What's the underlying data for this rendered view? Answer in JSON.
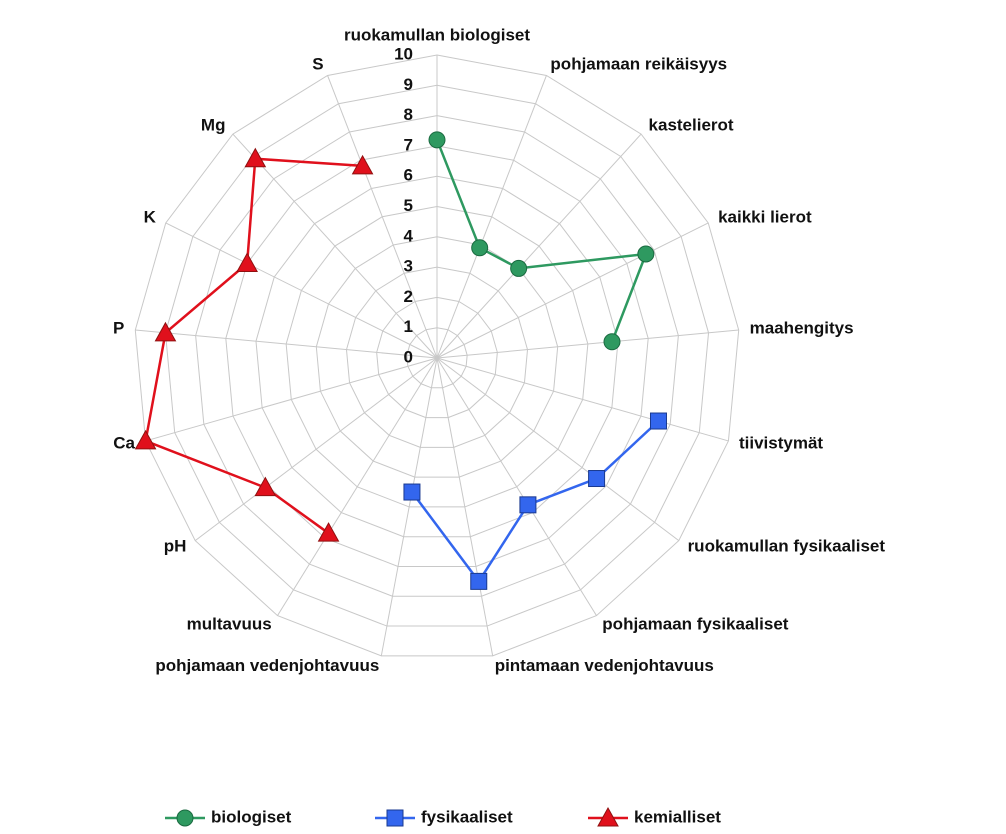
{
  "chart_data": {
    "type": "radar",
    "categories": [
      "ruokamullan biologiset",
      "pohjamaan reikäisyys",
      "kastelierot",
      "kaikki lierot",
      "maahengitys",
      "tiivistymät",
      "ruokamullan fysikaaliset",
      "pohjamaan fysikaaliset",
      "pintamaan vedenjohtavuus",
      "pohjamaan vedenjohtavuus",
      "multavuus",
      "pH",
      "Ca",
      "P",
      "K",
      "Mg",
      "S"
    ],
    "series": [
      {
        "name": "biologiset",
        "color": "#2e9960",
        "marker": "circle",
        "values": [
          7.2,
          3.9,
          4.0,
          7.7,
          5.8,
          null,
          null,
          null,
          null,
          null,
          null,
          null,
          null,
          null,
          null,
          null,
          null
        ]
      },
      {
        "name": "fysikaaliset",
        "color": "#3366ee",
        "marker": "square",
        "values": [
          null,
          null,
          null,
          null,
          null,
          7.6,
          6.6,
          5.7,
          7.5,
          4.5,
          null,
          null,
          null,
          null,
          null,
          null,
          null
        ]
      },
      {
        "name": "kemialliset",
        "color": "#e0101c",
        "marker": "triangle",
        "values": [
          null,
          null,
          null,
          null,
          null,
          null,
          null,
          null,
          null,
          null,
          6.8,
          7.1,
          10,
          9.0,
          7.0,
          8.9,
          6.8
        ]
      }
    ],
    "ylim": [
      0,
      10
    ],
    "yticks": [
      0,
      1,
      2,
      3,
      4,
      5,
      6,
      7,
      8,
      9,
      10
    ],
    "grid": true,
    "legend": "bottom"
  }
}
